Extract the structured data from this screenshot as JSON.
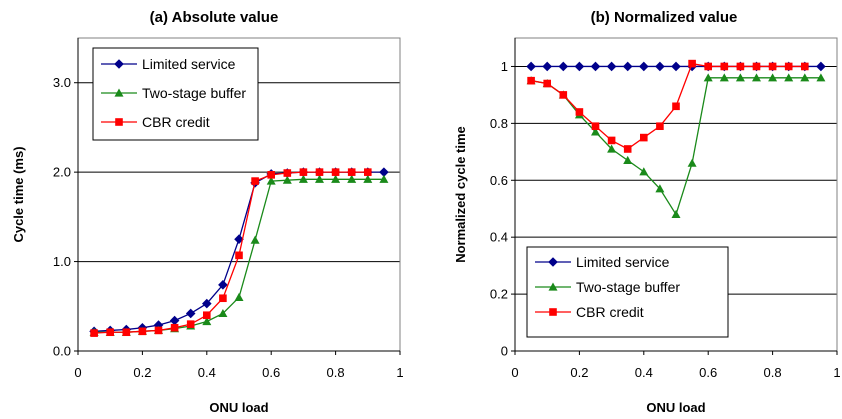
{
  "colors": {
    "limited": "#00008B",
    "two_stage": "#1A8A1A",
    "cbr": "#FF0000",
    "grid": "#000000",
    "frame": "#808080"
  },
  "chart_data": [
    {
      "type": "line",
      "title": "(a) Absolute value",
      "xlabel": "ONU load",
      "ylabel": "Cycle time (ms)",
      "xlim": [
        0,
        1
      ],
      "ylim": [
        0,
        3.5
      ],
      "xticks": [
        0,
        0.2,
        0.4,
        0.6,
        0.8,
        1
      ],
      "xtick_labels": [
        "0",
        "0.2",
        "0.4",
        "0.6",
        "0.8",
        "1"
      ],
      "yticks": [
        0,
        1,
        2,
        3
      ],
      "ytick_labels": [
        "0.0",
        "1.0",
        "2.0",
        "3.0"
      ],
      "grid": "horizontal major lines",
      "legend_position": "top-left",
      "series": [
        {
          "name": "Limited service",
          "marker": "diamond",
          "x": [
            0.05,
            0.1,
            0.15,
            0.2,
            0.25,
            0.3,
            0.35,
            0.4,
            0.45,
            0.5,
            0.55,
            0.6,
            0.65,
            0.7,
            0.75,
            0.8,
            0.85,
            0.9,
            0.95
          ],
          "y": [
            0.22,
            0.23,
            0.24,
            0.26,
            0.29,
            0.34,
            0.42,
            0.53,
            0.74,
            1.25,
            1.88,
            1.98,
            1.99,
            2.0,
            2.0,
            2.0,
            2.0,
            2.0,
            2.0
          ]
        },
        {
          "name": "Two-stage buffer",
          "marker": "triangle",
          "x": [
            0.05,
            0.1,
            0.15,
            0.2,
            0.25,
            0.3,
            0.35,
            0.4,
            0.45,
            0.5,
            0.55,
            0.6,
            0.65,
            0.7,
            0.75,
            0.8,
            0.85,
            0.9,
            0.95
          ],
          "y": [
            0.21,
            0.21,
            0.21,
            0.22,
            0.23,
            0.25,
            0.28,
            0.33,
            0.42,
            0.6,
            1.24,
            1.9,
            1.91,
            1.92,
            1.92,
            1.92,
            1.92,
            1.92,
            1.92
          ]
        },
        {
          "name": "CBR credit",
          "marker": "square",
          "x": [
            0.05,
            0.1,
            0.15,
            0.2,
            0.25,
            0.3,
            0.35,
            0.4,
            0.45,
            0.5,
            0.55,
            0.6,
            0.65,
            0.7,
            0.75,
            0.8,
            0.85,
            0.9
          ],
          "y": [
            0.2,
            0.21,
            0.21,
            0.22,
            0.23,
            0.26,
            0.3,
            0.4,
            0.59,
            1.07,
            1.9,
            1.97,
            1.99,
            2.0,
            2.0,
            2.0,
            2.0,
            2.0
          ]
        }
      ]
    },
    {
      "type": "line",
      "title": "(b) Normalized value",
      "xlabel": "ONU load",
      "ylabel": "Normalized cycle time",
      "xlim": [
        0,
        1
      ],
      "ylim": [
        0,
        1.1
      ],
      "xticks": [
        0,
        0.2,
        0.4,
        0.6,
        0.8,
        1
      ],
      "xtick_labels": [
        "0",
        "0.2",
        "0.4",
        "0.6",
        "0.8",
        "1"
      ],
      "yticks": [
        0,
        0.2,
        0.4,
        0.6,
        0.8,
        1
      ],
      "ytick_labels": [
        "0",
        "0.2",
        "0.4",
        "0.6",
        "0.8",
        "1"
      ],
      "grid": "horizontal major lines",
      "legend_position": "bottom-left",
      "series": [
        {
          "name": "Limited service",
          "marker": "diamond",
          "x": [
            0.05,
            0.1,
            0.15,
            0.2,
            0.25,
            0.3,
            0.35,
            0.4,
            0.45,
            0.5,
            0.55,
            0.6,
            0.65,
            0.7,
            0.75,
            0.8,
            0.85,
            0.9,
            0.95
          ],
          "y": [
            1,
            1,
            1,
            1,
            1,
            1,
            1,
            1,
            1,
            1,
            1,
            1,
            1,
            1,
            1,
            1,
            1,
            1,
            1
          ]
        },
        {
          "name": "Two-stage buffer",
          "marker": "triangle",
          "x": [
            0.05,
            0.1,
            0.15,
            0.2,
            0.25,
            0.3,
            0.35,
            0.4,
            0.45,
            0.5,
            0.55,
            0.6,
            0.65,
            0.7,
            0.75,
            0.8,
            0.85,
            0.9,
            0.95
          ],
          "y": [
            0.95,
            0.94,
            0.9,
            0.83,
            0.77,
            0.71,
            0.67,
            0.63,
            0.57,
            0.48,
            0.66,
            0.96,
            0.96,
            0.96,
            0.96,
            0.96,
            0.96,
            0.96,
            0.96
          ]
        },
        {
          "name": "CBR credit",
          "marker": "square",
          "x": [
            0.05,
            0.1,
            0.15,
            0.2,
            0.25,
            0.3,
            0.35,
            0.4,
            0.45,
            0.5,
            0.55,
            0.6,
            0.65,
            0.7,
            0.75,
            0.8,
            0.85,
            0.9
          ],
          "y": [
            0.95,
            0.94,
            0.9,
            0.84,
            0.79,
            0.74,
            0.71,
            0.75,
            0.79,
            0.86,
            1.01,
            1.0,
            1.0,
            1.0,
            1.0,
            1.0,
            1.0,
            1.0
          ]
        }
      ]
    }
  ]
}
